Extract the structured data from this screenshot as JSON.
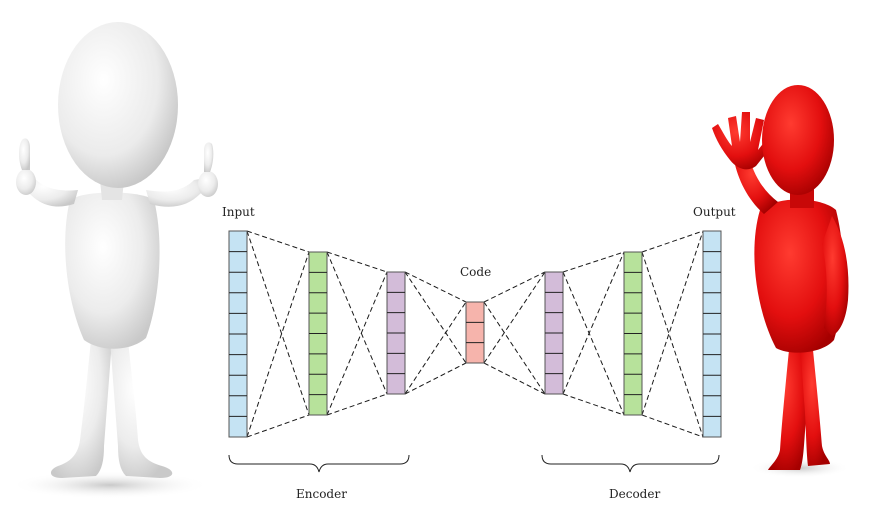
{
  "diagram": {
    "input_label": "Input",
    "code_label": "Code",
    "output_label": "Output",
    "encoder_label": "Encoder",
    "decoder_label": "Decoder",
    "layers": [
      {
        "id": "input-layer",
        "cells": 10,
        "color": "#c5e3f3"
      },
      {
        "id": "encoder-hidden-1",
        "cells": 8,
        "color": "#b7e29b"
      },
      {
        "id": "encoder-hidden-2",
        "cells": 6,
        "color": "#d3bcd9"
      },
      {
        "id": "code-layer",
        "cells": 3,
        "color": "#f6b4ac"
      },
      {
        "id": "decoder-hidden-1",
        "cells": 6,
        "color": "#d3bcd9"
      },
      {
        "id": "decoder-hidden-2",
        "cells": 8,
        "color": "#b7e29b"
      },
      {
        "id": "output-layer",
        "cells": 10,
        "color": "#c5e3f3"
      }
    ]
  },
  "figures": {
    "left": {
      "icon": "thumbs-up-person-icon",
      "color": "#e6e6e6"
    },
    "right": {
      "icon": "waving-person-icon",
      "color": "#e01010"
    }
  }
}
